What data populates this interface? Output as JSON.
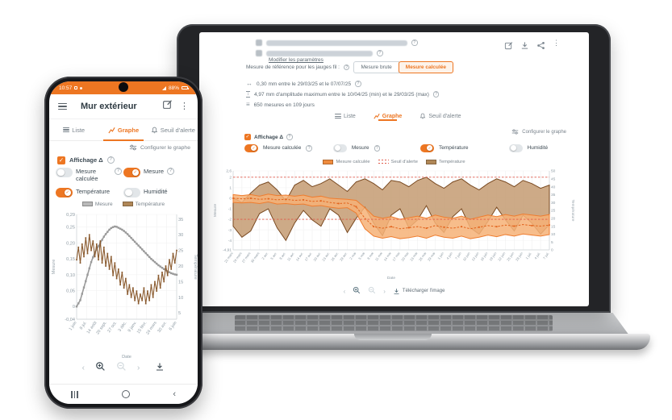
{
  "accent": "#ED7622",
  "phone": {
    "status_bar": {
      "time": "10:57",
      "battery": "88%"
    },
    "header": {
      "title": "Mur extérieur"
    },
    "tabs": {
      "liste": "Liste",
      "graphe": "Graphe",
      "seuil": "Seuil d'alerte"
    },
    "configure_link": "Configurer le graphe",
    "affichage_label": "Affichage Δ",
    "toggles": [
      {
        "label": "Mesure calculée",
        "on": false,
        "help": true
      },
      {
        "label": "Mesure",
        "on": true,
        "help": true
      },
      {
        "label": "Température",
        "on": true,
        "help": false
      },
      {
        "label": "Humidité",
        "on": false,
        "help": false
      }
    ]
  },
  "laptop": {
    "modifier_link": "Modifier les paramètres",
    "reference": {
      "label": "Mesure de référence pour les jauges fil :",
      "btn_brute": "Mesure brute",
      "btn_calculee": "Mesure calculée"
    },
    "stats": [
      {
        "text": "0,30 mm entre le 29/03/25 et le 07/07/25"
      },
      {
        "text": "4,97 mm d'amplitude maximum entre le 10/04/25 (min) et le 29/03/25 (max)"
      },
      {
        "text": "650 mesures en 109 jours"
      }
    ],
    "tabs": {
      "liste": "Liste",
      "graphe": "Graphe",
      "seuil": "Seuil d'alerte"
    },
    "configure_link": "Configurer le graphe",
    "affichage_label": "Affichage Δ",
    "toggles": [
      {
        "label": "Mesure calculée",
        "on": true,
        "help": true
      },
      {
        "label": "Mesure",
        "on": false,
        "help": true
      },
      {
        "label": "Température",
        "on": true,
        "help": false
      },
      {
        "label": "Humidité",
        "on": false,
        "help": false
      }
    ],
    "download_label": "Télécharger l'image"
  },
  "chart_data": [
    {
      "type": "line",
      "title": "",
      "xlabel": "Date",
      "x_labels": [
        "1 juin",
        "8 jul.",
        "14 août",
        "20 sept.",
        "27 oct.",
        "3 déc.",
        "9 janv.",
        "15 févr.",
        "24 mars",
        "30 avr.",
        "6 juin"
      ],
      "y_left": {
        "label": "Mesure",
        "min": -0.04,
        "max": 0.29,
        "tick_values": [
          0.29,
          0.25,
          0.2,
          0.15,
          0.1,
          0.05,
          0,
          -0.04
        ],
        "tick_labels": [
          "0,29",
          "0,25",
          "0,20",
          "0,15",
          "0,10",
          "0,05",
          "0",
          "-0,04"
        ]
      },
      "y_right": {
        "label": "Température",
        "min": 3,
        "max": 36.5,
        "tick_values": [
          35,
          30,
          25,
          20,
          15,
          10,
          5
        ],
        "tick_labels": [
          "35",
          "30",
          "25",
          "20",
          "15",
          "10",
          "5"
        ]
      },
      "series": [
        {
          "name": "Mesure",
          "axis": "left",
          "color": "#9a9a9a",
          "width": 1.6,
          "markers": true,
          "msize": 2.4,
          "values": [
            0,
            0.01,
            0.02,
            0.04,
            0.06,
            0.08,
            0.1,
            0.12,
            0.14,
            0.155,
            0.17,
            0.18,
            0.19,
            0.2,
            0.21,
            0.22,
            0.228,
            0.235,
            0.242,
            0.247,
            0.25,
            0.252,
            0.251,
            0.248,
            0.245,
            0.242,
            0.238,
            0.233,
            0.228,
            0.222,
            0.216,
            0.21,
            0.204,
            0.198,
            0.192,
            0.186,
            0.18,
            0.174,
            0.168,
            0.162,
            0.156,
            0.15,
            0.145,
            0.14,
            0.135,
            0.13,
            0.126,
            0.122,
            0.118,
            0.114,
            0.111,
            0.108,
            0.105,
            0.103,
            0.101,
            0.1
          ]
        },
        {
          "name": "Température",
          "axis": "right",
          "color": "#8a5a2e",
          "width": 1.1,
          "markers": true,
          "msize": 1.7,
          "values": [
            22,
            26,
            21,
            27,
            23,
            29,
            24,
            30,
            25,
            28,
            23,
            27,
            22,
            28,
            21,
            26,
            20,
            24,
            19,
            23,
            17,
            21,
            16,
            19,
            14,
            18,
            13,
            16,
            11,
            14,
            10,
            13,
            9,
            12,
            8,
            11,
            9,
            13,
            8,
            12,
            9,
            14,
            10,
            15,
            12,
            17,
            13,
            18,
            15,
            20,
            17,
            22,
            19,
            24,
            21,
            25
          ]
        }
      ]
    },
    {
      "type": "band-line",
      "title": "",
      "xlabel": "Date",
      "x_labels": [
        "21 mars",
        "24 mars",
        "27 mars",
        "30 mars",
        "2 avr.",
        "5 avr.",
        "8 avr.",
        "11 avr.",
        "14 avr.",
        "17 avr.",
        "20 avr.",
        "23 avr.",
        "26 avr.",
        "29 avr.",
        "2 mai",
        "5 mai",
        "8 mai",
        "11 mai",
        "14 mai",
        "17 mai",
        "20 mai",
        "23 mai",
        "26 mai",
        "29 mai",
        "1 juin",
        "4 juin",
        "7 juin",
        "10 juin",
        "13 juin",
        "16 juin",
        "19 juin",
        "22 juin",
        "25 juin",
        "28 juin",
        "1 juil.",
        "4 juil.",
        "7 juil."
      ],
      "y_left": {
        "label": "Mesure",
        "min": -4.91,
        "max": 2.6,
        "tick_values": [
          2.6,
          2,
          1,
          0,
          -1,
          -2,
          -3,
          -4,
          -4.91
        ],
        "tick_labels": [
          "2,6",
          "2",
          "1",
          "0",
          "-1",
          "-2",
          "-3",
          "-4",
          "-4,91"
        ]
      },
      "y_right": {
        "label": "Température",
        "min": 0,
        "max": 50,
        "tick_values": [
          50,
          45,
          40,
          35,
          30,
          25,
          20,
          15,
          10,
          5,
          0
        ],
        "tick_labels": [
          "50",
          "45",
          "40",
          "35",
          "30",
          "25",
          "20",
          "15",
          "10",
          "5",
          "0"
        ]
      },
      "threshold": {
        "label": "Seuil d'alerte",
        "color": "#e05b4b",
        "values": [
          2,
          -2
        ]
      },
      "series": [
        {
          "name": "Température",
          "axis": "right",
          "color": "#7a4a21",
          "fill": "#c49b72",
          "max": [
            33,
            30,
            36,
            41,
            43,
            38,
            31,
            41,
            44,
            40,
            42,
            45,
            41,
            37,
            43,
            45,
            42,
            38,
            44,
            43,
            40,
            44,
            46,
            42,
            39,
            43,
            45,
            41,
            38,
            42,
            45,
            43,
            40,
            44,
            42,
            39,
            41
          ],
          "min": [
            15,
            8,
            12,
            23,
            26,
            14,
            6,
            17,
            25,
            19,
            15,
            26,
            22,
            11,
            20,
            27,
            17,
            9,
            22,
            26,
            14,
            19,
            28,
            17,
            11,
            21,
            26,
            14,
            10,
            18,
            27,
            19,
            12,
            22,
            17,
            10,
            16
          ]
        },
        {
          "name": "Mesure calculée",
          "axis": "left",
          "color": "#ef7d2f",
          "fill": "#f6b277",
          "max": [
            0.35,
            0.25,
            0.35,
            0.2,
            0.4,
            0.25,
            0.3,
            0.2,
            0.3,
            0.1,
            0.2,
            0,
            -0.05,
            -0.1,
            -0.2,
            -0.9,
            -1.7,
            -1.9,
            -1.75,
            -2,
            -1.85,
            -1.7,
            -1.9,
            -1.6,
            -1.8,
            -1.9,
            -1.7,
            -2,
            -1.8,
            -1.6,
            -1.75,
            -1.55,
            -1.7,
            -1.5,
            -1.6,
            -1.7,
            -1.55
          ],
          "min": [
            -0.4,
            -0.45,
            -0.4,
            -0.5,
            -0.35,
            -0.55,
            -0.5,
            -0.6,
            -0.55,
            -0.75,
            -0.7,
            -0.85,
            -0.95,
            -0.9,
            -1.4,
            -2.9,
            -3.6,
            -3.8,
            -3.65,
            -3.85,
            -3.75,
            -3.6,
            -3.8,
            -3.5,
            -3.7,
            -3.8,
            -3.6,
            -3.85,
            -3.7,
            -3.5,
            -3.65,
            -3.45,
            -3.6,
            -3.4,
            -3.5,
            -3.6,
            -3.45
          ],
          "line": [
            0,
            -0.05,
            0,
            -0.1,
            -0.05,
            -0.15,
            -0.1,
            -0.2,
            -0.15,
            -0.3,
            -0.25,
            -0.4,
            -0.5,
            -0.45,
            -0.8,
            -1.9,
            -2.7,
            -2.85,
            -2.7,
            -2.9,
            -2.8,
            -2.7,
            -2.85,
            -2.6,
            -2.75,
            -2.85,
            -2.7,
            -2.9,
            -2.75,
            -2.6,
            -2.7,
            -2.55,
            -2.65,
            -2.5,
            -2.6,
            -2.65,
            -2.55
          ],
          "line_color": "#e2621b"
        }
      ]
    }
  ]
}
